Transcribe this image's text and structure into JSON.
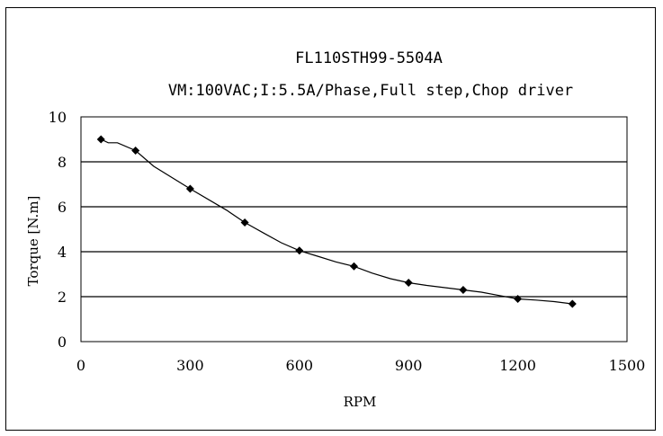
{
  "chart_data": {
    "type": "line",
    "title": "FL110STH99-5504A",
    "subtitle": "VM:100VAC;I:5.5A/Phase,Full step,Chop driver",
    "xlabel": "RPM",
    "ylabel": "Torque [N.m]",
    "xlim": [
      0,
      1500
    ],
    "ylim": [
      0,
      10
    ],
    "x_ticks": [
      "0",
      "300",
      "600",
      "900",
      "1200",
      "1500"
    ],
    "y_ticks": [
      "0",
      "2",
      "4",
      "6",
      "8",
      "10"
    ],
    "grid": "horizontal",
    "line_color": "#000000",
    "curve": {
      "x": [
        55,
        75,
        100,
        150,
        200,
        300,
        400,
        450,
        500,
        550,
        600,
        650,
        700,
        750,
        800,
        850,
        900,
        950,
        1000,
        1050,
        1100,
        1150,
        1200,
        1250,
        1300,
        1350
      ],
      "y": [
        9.0,
        8.85,
        8.85,
        8.5,
        7.8,
        6.8,
        5.85,
        5.3,
        4.85,
        4.4,
        4.05,
        3.8,
        3.55,
        3.35,
        3.05,
        2.8,
        2.62,
        2.5,
        2.4,
        2.3,
        2.2,
        2.05,
        1.9,
        1.85,
        1.78,
        1.68
      ]
    },
    "markers": {
      "x": [
        55,
        150,
        300,
        450,
        600,
        750,
        900,
        1050,
        1200,
        1350
      ],
      "y": [
        9.0,
        8.5,
        6.8,
        5.3,
        4.05,
        3.35,
        2.62,
        2.3,
        1.9,
        1.68
      ]
    }
  }
}
